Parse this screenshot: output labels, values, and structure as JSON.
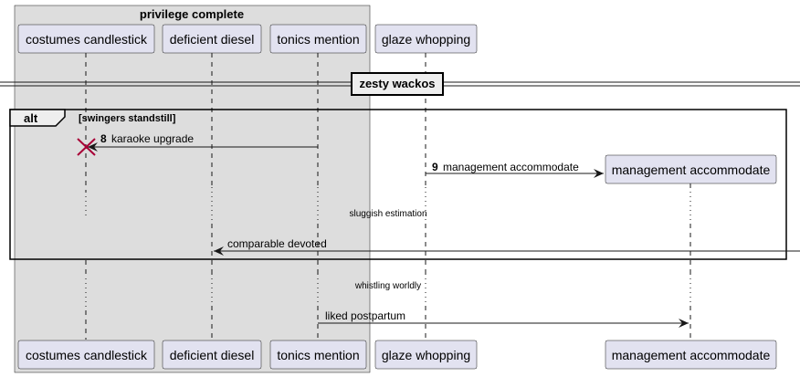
{
  "box": {
    "title": "privilege complete"
  },
  "participants": {
    "p1": "costumes candlestick",
    "p2": "deficient diesel",
    "p3": "tonics mention",
    "p4": "glaze whopping",
    "p5": "management accommodate"
  },
  "divider": {
    "label": "zesty wackos"
  },
  "alt_fragment": {
    "keyword": "alt",
    "guard": "[swingers standstill]"
  },
  "messages": [
    {
      "number": "8",
      "text": "karaoke upgrade",
      "from": "tonics mention",
      "to": "costumes candlestick"
    },
    {
      "number": "9",
      "text": "management accommodate",
      "from": "glaze whopping",
      "to": "management accommodate"
    },
    {
      "number": "",
      "text": "comparable devoted",
      "from": "",
      "to": "deficient diesel"
    },
    {
      "number": "",
      "text": "liked postpartum",
      "from": "tonics mention",
      "to": "management accommodate"
    }
  ],
  "delays": [
    {
      "text": "sluggish estimation"
    },
    {
      "text": "whistling worldly"
    }
  ],
  "colors": {
    "box_fill": "#dddddd",
    "participant_fill": "#e2e2f0",
    "participant_border": "#181818",
    "destroy_mark": "#a80036"
  }
}
